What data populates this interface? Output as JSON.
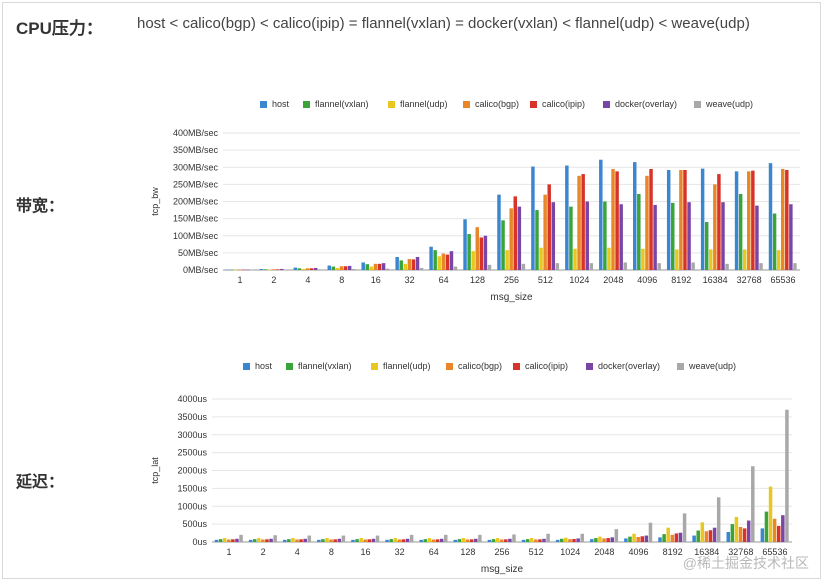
{
  "header": {
    "label": "CPU压力：",
    "text": "host < calico(bgp) < calico(ipip) = flannel(vxlan) = docker(vxlan) < flannel(udp) < weave(udp)"
  },
  "rows": {
    "bandwidth_label": "带宽：",
    "latency_label": "延迟："
  },
  "watermark": "@稀土掘金技术社区",
  "colors": {
    "host": "#3a87d0",
    "flannel(vxlan)": "#3aa33a",
    "flannel(udp)": "#e8c820",
    "calico(bgp)": "#e8872a",
    "calico(ipip)": "#d8332b",
    "docker(overlay)": "#7a46a5",
    "weave(udp)": "#a8a8a8"
  },
  "chart_data": [
    {
      "type": "bar",
      "xlabel": "msg_size",
      "ylabel": "tcp_bw",
      "ylim": [
        0,
        400
      ],
      "yticks": [
        "0MB/sec",
        "50MB/sec",
        "100MB/sec",
        "150MB/sec",
        "200MB/sec",
        "250MB/sec",
        "300MB/sec",
        "350MB/sec",
        "400MB/sec"
      ],
      "grid": true,
      "legend_position": "top",
      "categories": [
        "1",
        "2",
        "4",
        "8",
        "16",
        "32",
        "64",
        "128",
        "256",
        "512",
        "1024",
        "2048",
        "4096",
        "8192",
        "16384",
        "32768",
        "65536"
      ],
      "series": [
        {
          "name": "host",
          "values": [
            1,
            3,
            7,
            13,
            22,
            38,
            68,
            148,
            220,
            302,
            305,
            322,
            315,
            292,
            296,
            288,
            312
          ]
        },
        {
          "name": "flannel(vxlan)",
          "values": [
            1,
            2,
            5,
            10,
            17,
            28,
            58,
            105,
            145,
            175,
            185,
            200,
            222,
            196,
            140,
            222,
            165
          ]
        },
        {
          "name": "flannel(udp)",
          "values": [
            0.5,
            1,
            3,
            6,
            10,
            18,
            40,
            55,
            58,
            65,
            62,
            65,
            62,
            60,
            60,
            60,
            58
          ]
        },
        {
          "name": "calico(bgp)",
          "values": [
            1,
            2,
            5,
            11,
            18,
            32,
            48,
            125,
            180,
            220,
            275,
            295,
            275,
            292,
            250,
            288,
            295
          ]
        },
        {
          "name": "calico(ipip)",
          "values": [
            1,
            2,
            5,
            11,
            18,
            31,
            45,
            95,
            215,
            250,
            280,
            288,
            295,
            292,
            280,
            290,
            292
          ]
        },
        {
          "name": "docker(overlay)",
          "values": [
            1,
            3,
            6,
            12,
            20,
            38,
            55,
            100,
            185,
            198,
            200,
            192,
            190,
            198,
            198,
            188,
            192
          ]
        },
        {
          "name": "weave(udp)",
          "values": [
            0.5,
            1,
            2,
            3,
            4,
            6,
            10,
            15,
            18,
            20,
            20,
            22,
            20,
            22,
            18,
            20,
            20
          ]
        }
      ]
    },
    {
      "type": "bar",
      "xlabel": "msg_size",
      "ylabel": "tcp_lat",
      "ylim": [
        0,
        4000
      ],
      "yticks": [
        "0us",
        "500us",
        "1000us",
        "1500us",
        "2000us",
        "2500us",
        "3000us",
        "3500us",
        "4000us"
      ],
      "grid": true,
      "legend_position": "top",
      "categories": [
        "1",
        "2",
        "4",
        "8",
        "16",
        "32",
        "64",
        "128",
        "256",
        "512",
        "1024",
        "2048",
        "4096",
        "8192",
        "16384",
        "32768",
        "65536"
      ],
      "series": [
        {
          "name": "host",
          "values": [
            60,
            60,
            60,
            60,
            60,
            60,
            60,
            60,
            60,
            60,
            60,
            80,
            100,
            130,
            180,
            280,
            380
          ]
        },
        {
          "name": "flannel(vxlan)",
          "values": [
            80,
            80,
            80,
            80,
            80,
            80,
            80,
            80,
            80,
            80,
            90,
            110,
            150,
            220,
            320,
            500,
            850
          ]
        },
        {
          "name": "flannel(udp)",
          "values": [
            110,
            110,
            110,
            110,
            110,
            110,
            110,
            110,
            110,
            110,
            120,
            150,
            230,
            400,
            550,
            700,
            1550
          ]
        },
        {
          "name": "calico(bgp)",
          "values": [
            70,
            70,
            70,
            70,
            70,
            70,
            70,
            70,
            70,
            70,
            80,
            100,
            140,
            200,
            300,
            420,
            650
          ]
        },
        {
          "name": "calico(ipip)",
          "values": [
            75,
            75,
            75,
            75,
            75,
            75,
            75,
            75,
            75,
            75,
            85,
            110,
            160,
            240,
            330,
            380,
            450
          ]
        },
        {
          "name": "docker(overlay)",
          "values": [
            90,
            90,
            90,
            90,
            90,
            90,
            90,
            90,
            90,
            90,
            100,
            130,
            180,
            260,
            400,
            600,
            750
          ]
        },
        {
          "name": "weave(udp)",
          "values": [
            200,
            190,
            180,
            180,
            180,
            200,
            200,
            200,
            210,
            230,
            230,
            360,
            540,
            800,
            1250,
            2120,
            3700
          ]
        }
      ]
    }
  ]
}
